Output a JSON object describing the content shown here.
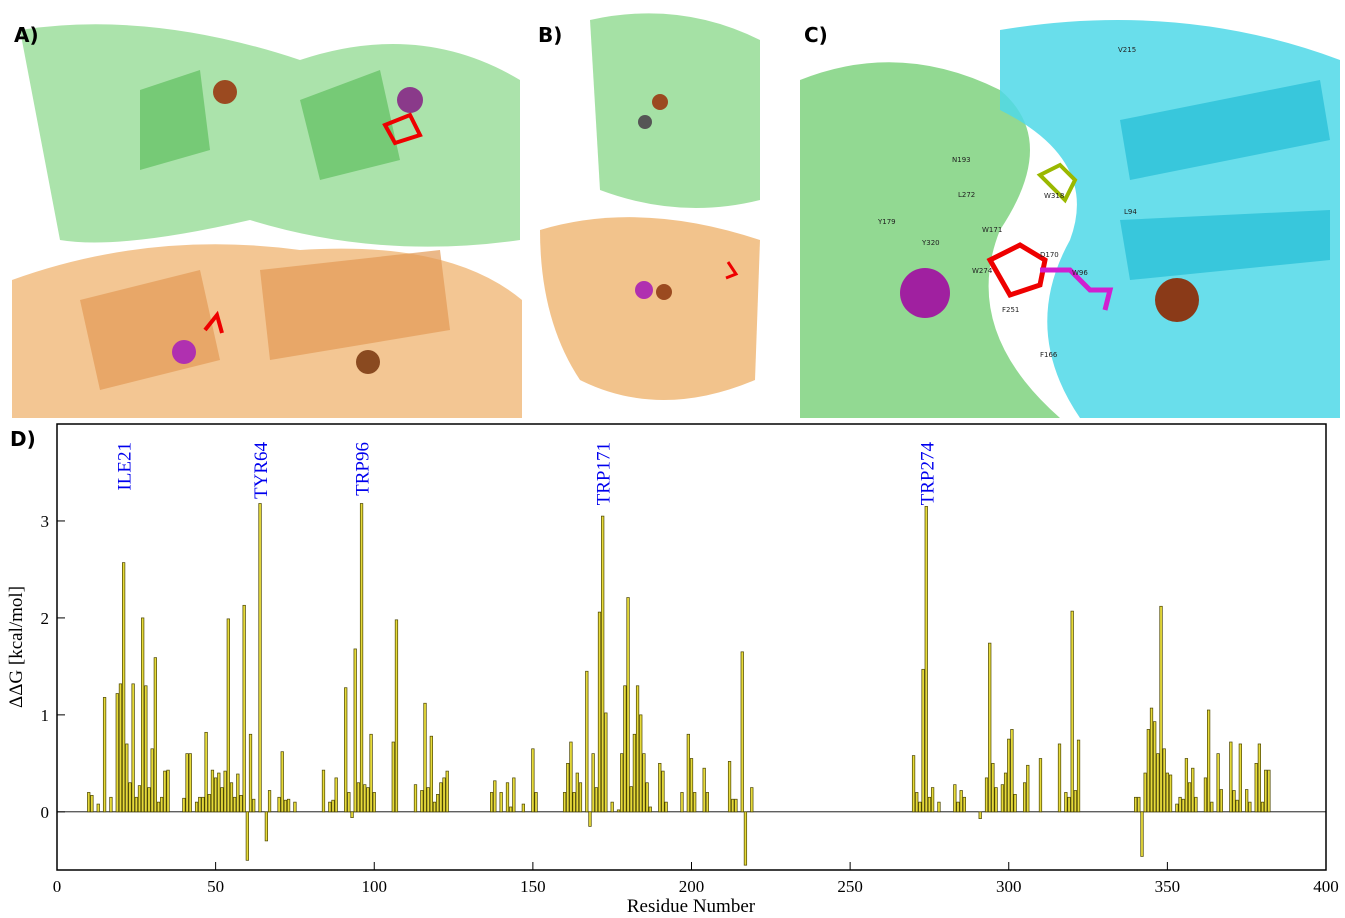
{
  "panels": [
    "A)",
    "B)",
    "C)"
  ],
  "residue_labels": [
    "V215",
    "N193",
    "L272",
    "Y179",
    "Y320",
    "W171",
    "W318",
    "L94",
    "W274",
    "D170",
    "W96",
    "F251",
    "F166"
  ],
  "chart_data": {
    "type": "bar",
    "panel_label": "D)",
    "xlabel": "Residue Number",
    "ylabel": "ΔΔG [kcal/mol]",
    "xlim": [
      0,
      400
    ],
    "xticks": [
      0,
      50,
      100,
      150,
      200,
      250,
      300,
      350,
      400
    ],
    "ylim": [
      -0.6,
      4.0
    ],
    "yticks": [
      0,
      1,
      2,
      3
    ],
    "color": "#e6da3a",
    "edgecolor": "#4a4400",
    "annotation_color": "#0000ee",
    "annotations": [
      {
        "text": "ILE21",
        "x": 21
      },
      {
        "text": "TYR64",
        "x": 64
      },
      {
        "text": "TRP96",
        "x": 96
      },
      {
        "text": "TRP171",
        "x": 172
      },
      {
        "text": "TRP274",
        "x": 274
      }
    ],
    "x": [
      10,
      11,
      13,
      15,
      17,
      19,
      20,
      21,
      22,
      23,
      24,
      25,
      26,
      27,
      28,
      29,
      30,
      31,
      32,
      33,
      34,
      35,
      40,
      41,
      42,
      44,
      45,
      46,
      47,
      48,
      49,
      50,
      51,
      52,
      53,
      54,
      55,
      56,
      57,
      58,
      59,
      60,
      61,
      62,
      64,
      66,
      67,
      70,
      71,
      72,
      73,
      75,
      84,
      86,
      87,
      88,
      91,
      92,
      93,
      94,
      95,
      96,
      97,
      98,
      99,
      100,
      106,
      107,
      113,
      115,
      116,
      117,
      118,
      119,
      120,
      121,
      122,
      123,
      137,
      138,
      140,
      142,
      143,
      144,
      147,
      150,
      151,
      160,
      161,
      162,
      163,
      164,
      165,
      167,
      168,
      169,
      170,
      171,
      172,
      173,
      175,
      177,
      178,
      179,
      180,
      181,
      182,
      183,
      184,
      185,
      186,
      187,
      190,
      191,
      192,
      197,
      199,
      200,
      201,
      204,
      205,
      212,
      213,
      214,
      216,
      217,
      219,
      270,
      271,
      272,
      273,
      274,
      275,
      276,
      278,
      283,
      284,
      285,
      286,
      291,
      293,
      294,
      295,
      296,
      298,
      299,
      300,
      301,
      302,
      305,
      306,
      310,
      316,
      318,
      319,
      320,
      321,
      322,
      340,
      341,
      342,
      343,
      344,
      345,
      346,
      347,
      348,
      349,
      350,
      351,
      353,
      354,
      355,
      356,
      357,
      358,
      359,
      362,
      363,
      364,
      366,
      367,
      370,
      371,
      372,
      373,
      375,
      376,
      378,
      379,
      380,
      381,
      382
    ],
    "values": [
      0.2,
      0.17,
      0.08,
      1.18,
      0.15,
      1.22,
      1.32,
      2.57,
      0.7,
      0.3,
      1.32,
      0.15,
      0.27,
      2.0,
      1.3,
      0.25,
      0.65,
      1.59,
      0.1,
      0.15,
      0.42,
      0.43,
      0.14,
      0.6,
      0.6,
      0.1,
      0.15,
      0.15,
      0.82,
      0.18,
      0.43,
      0.35,
      0.4,
      0.25,
      0.42,
      1.99,
      0.3,
      0.15,
      0.39,
      0.17,
      2.13,
      -0.5,
      0.8,
      0.13,
      3.18,
      -0.3,
      0.22,
      0.15,
      0.62,
      0.12,
      0.13,
      0.1,
      0.43,
      0.1,
      0.12,
      0.35,
      1.28,
      0.2,
      -0.06,
      1.68,
      0.3,
      3.18,
      0.28,
      0.25,
      0.8,
      0.2,
      0.72,
      1.98,
      0.28,
      0.22,
      1.12,
      0.25,
      0.78,
      0.1,
      0.18,
      0.3,
      0.35,
      0.42,
      0.2,
      0.32,
      0.2,
      0.3,
      0.05,
      0.35,
      0.08,
      0.65,
      0.2,
      0.2,
      0.5,
      0.72,
      0.2,
      0.4,
      0.3,
      1.45,
      -0.15,
      0.6,
      0.25,
      2.06,
      3.05,
      1.02,
      0.1,
      0.02,
      0.6,
      1.3,
      2.21,
      0.26,
      0.8,
      1.3,
      1.0,
      0.6,
      0.3,
      0.05,
      0.5,
      0.42,
      0.1,
      0.2,
      0.8,
      0.55,
      0.2,
      0.45,
      0.2,
      0.52,
      0.13,
      0.13,
      1.65,
      -0.55,
      0.25,
      0.58,
      0.2,
      0.1,
      1.47,
      3.15,
      0.15,
      0.25,
      0.1,
      0.28,
      0.1,
      0.22,
      0.15,
      -0.07,
      0.35,
      1.74,
      0.5,
      0.25,
      0.28,
      0.4,
      0.75,
      0.85,
      0.18,
      0.3,
      0.48,
      0.55,
      0.7,
      0.2,
      0.15,
      2.07,
      0.22,
      0.74,
      0.15,
      0.15,
      -0.46,
      0.4,
      0.85,
      1.07,
      0.93,
      0.6,
      2.12,
      0.65,
      0.4,
      0.38,
      0.08,
      0.15,
      0.13,
      0.55,
      0.3,
      0.45,
      0.15,
      0.35,
      1.05,
      0.1,
      0.6,
      0.23,
      0.72,
      0.22,
      0.12,
      0.7,
      0.23,
      0.1,
      0.5,
      0.7,
      0.1,
      0.43,
      0.43
    ]
  }
}
